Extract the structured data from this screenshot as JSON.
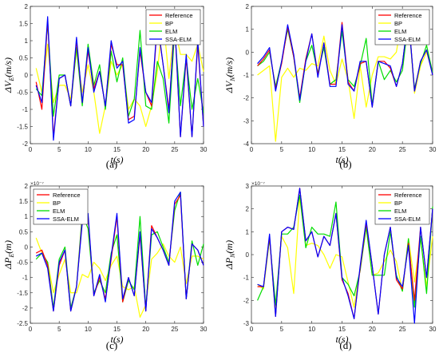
{
  "colors": {
    "reference": "#ff0000",
    "bp": "#ffff00",
    "elm": "#00dd00",
    "ssa_elm": "#0000ff",
    "axis": "#262626"
  },
  "chart_data": [
    {
      "type": "line",
      "panel_caption": "(a)",
      "xlabel": "t(s)",
      "ylabel": "ΔV_E(m/s)",
      "xlim": [
        0,
        30
      ],
      "ylim": [
        -2,
        2
      ],
      "xticks": [
        0,
        5,
        10,
        15,
        20,
        25,
        30
      ],
      "yticks": [
        -2,
        -1.5,
        -1,
        -0.5,
        0,
        0.5,
        1,
        1.5,
        2
      ],
      "ytick_labels": [
        "-2",
        "-1.5",
        "-1",
        "-0.5",
        "0",
        "0.5",
        "1",
        "1.5",
        "2"
      ],
      "y_exponent": "",
      "legend_position": "top-right",
      "grid": false,
      "x": [
        1,
        2,
        3,
        4,
        5,
        6,
        7,
        8,
        9,
        10,
        11,
        12,
        13,
        14,
        15,
        16,
        17,
        18,
        19,
        20,
        21,
        22,
        23,
        24,
        25,
        26,
        27,
        28,
        29,
        30
      ],
      "series": [
        {
          "name": "Reference",
          "key": "reference",
          "values": [
            -0.2,
            -1.0,
            1.6,
            -1.8,
            -0.1,
            0.0,
            -0.9,
            1.0,
            -0.8,
            0.7,
            -0.4,
            0.1,
            -0.9,
            0.9,
            0.3,
            0.3,
            -1.3,
            -1.2,
            0.7,
            -0.5,
            -0.9,
            1.5,
            0.3,
            -1.0,
            1.5,
            -1.8,
            0.5,
            -1.8,
            0.9,
            -1.5
          ]
        },
        {
          "name": "BP",
          "key": "bp",
          "values": [
            0.2,
            -0.5,
            0.9,
            -0.8,
            -0.3,
            -0.3,
            -0.7,
            0.7,
            -0.5,
            0.3,
            -0.5,
            -1.7,
            -0.9,
            0.4,
            0.0,
            0.3,
            -1.0,
            -0.7,
            -0.9,
            -1.5,
            -0.9,
            0.1,
            1.7,
            -0.1,
            1.4,
            0.6,
            0.6,
            0.4,
            0.9,
            0.1
          ]
        },
        {
          "name": "ELM",
          "key": "elm",
          "values": [
            -0.4,
            -0.6,
            1.5,
            -1.2,
            0.0,
            0.0,
            -0.9,
            0.8,
            -0.9,
            0.9,
            -0.3,
            0.3,
            -1.0,
            0.7,
            -0.2,
            0.5,
            -1.2,
            -0.7,
            1.3,
            -0.9,
            -1.0,
            0.4,
            -0.1,
            -1.4,
            1.3,
            -0.9,
            0.5,
            -1.0,
            -0.1,
            -1.1
          ]
        },
        {
          "name": "SSA-ELM",
          "key": "ssa_elm",
          "values": [
            -0.3,
            -0.8,
            1.7,
            -1.9,
            -0.1,
            0.0,
            -0.9,
            1.1,
            -0.8,
            0.8,
            -0.5,
            0.1,
            -0.9,
            1.0,
            0.2,
            0.4,
            -1.4,
            -1.3,
            0.8,
            -0.5,
            -0.8,
            1.6,
            0.3,
            -1.1,
            1.6,
            -1.8,
            0.6,
            -1.8,
            1.0,
            -1.5
          ]
        }
      ]
    },
    {
      "type": "line",
      "panel_caption": "(b)",
      "xlabel": "t(s)",
      "ylabel": "ΔV_N(m/s)",
      "xlim": [
        0,
        30
      ],
      "ylim": [
        -4,
        2
      ],
      "xticks": [
        0,
        5,
        10,
        15,
        20,
        25,
        30
      ],
      "yticks": [
        -4,
        -3,
        -2,
        -1,
        0,
        1,
        2
      ],
      "ytick_labels": [
        "-4",
        "-3",
        "-2",
        "-1",
        "0",
        "1",
        "2"
      ],
      "y_exponent": "",
      "legend_position": "top-right",
      "grid": false,
      "x": [
        1,
        2,
        3,
        4,
        5,
        6,
        7,
        8,
        9,
        10,
        11,
        12,
        13,
        14,
        15,
        16,
        17,
        18,
        19,
        20,
        21,
        22,
        23,
        24,
        25,
        26,
        27,
        28,
        29,
        30
      ],
      "series": [
        {
          "name": "Reference",
          "key": "reference",
          "values": [
            -0.6,
            -0.3,
            0.1,
            -1.6,
            -0.5,
            1.1,
            -0.2,
            -2.0,
            -0.3,
            0.8,
            -1.0,
            0.4,
            -1.4,
            -1.4,
            1.3,
            -1.3,
            -1.7,
            -0.5,
            -0.4,
            -2.4,
            -0.4,
            -0.4,
            -0.7,
            -1.5,
            -0.5,
            1.6,
            -1.7,
            -0.4,
            0.1,
            -1.0
          ]
        },
        {
          "name": "BP",
          "key": "bp",
          "values": [
            -1.0,
            -0.8,
            -0.6,
            -3.9,
            -1.1,
            -0.7,
            -1.1,
            -0.7,
            -0.8,
            -0.5,
            -0.6,
            0.7,
            -0.8,
            -1.4,
            -0.3,
            -1.2,
            -2.9,
            -0.6,
            -2.4,
            -1.0,
            -0.2,
            -0.2,
            -0.3,
            0.0,
            1.6,
            1.5,
            -1.8,
            -0.6,
            0.0,
            -0.9
          ]
        },
        {
          "name": "ELM",
          "key": "elm",
          "values": [
            -0.6,
            -0.4,
            0.0,
            -1.5,
            -0.4,
            1.0,
            -0.2,
            -2.2,
            -0.4,
            0.3,
            -0.9,
            0.2,
            -1.4,
            -1.2,
            0.9,
            -1.2,
            -1.5,
            -0.6,
            0.6,
            -2.3,
            -0.4,
            -1.2,
            -0.8,
            -1.3,
            -0.8,
            1.4,
            -1.6,
            -0.5,
            0.3,
            -0.9
          ]
        },
        {
          "name": "SSA-ELM",
          "key": "ssa_elm",
          "values": [
            -0.5,
            -0.2,
            0.2,
            -1.7,
            -0.4,
            1.2,
            -0.1,
            -2.1,
            -0.4,
            0.8,
            -1.1,
            0.4,
            -1.5,
            -1.5,
            1.2,
            -1.4,
            -1.7,
            -0.4,
            -0.4,
            -2.4,
            -0.4,
            -0.5,
            -0.6,
            -1.5,
            -0.5,
            1.6,
            -1.7,
            -0.4,
            0.1,
            -1.0
          ]
        }
      ]
    },
    {
      "type": "line",
      "panel_caption": "(c)",
      "xlabel": "t(s)",
      "ylabel": "ΔP_E(m)",
      "xlim": [
        0,
        30
      ],
      "ylim": [
        -2.5,
        2
      ],
      "xticks": [
        0,
        5,
        10,
        15,
        20,
        25,
        30
      ],
      "yticks": [
        -2.5,
        -2,
        -1.5,
        -1,
        -0.5,
        0,
        0.5,
        1,
        1.5,
        2
      ],
      "ytick_labels": [
        "-2.5",
        "-2",
        "-1.5",
        "-1",
        "-0.5",
        "0",
        "0.5",
        "1",
        "1.5",
        "2"
      ],
      "y_exponent": "×10⁻⁷",
      "legend_position": "top-left",
      "grid": false,
      "x": [
        1,
        2,
        3,
        4,
        5,
        6,
        7,
        8,
        9,
        10,
        11,
        12,
        13,
        14,
        15,
        16,
        17,
        18,
        19,
        20,
        21,
        22,
        23,
        24,
        25,
        26,
        27,
        28,
        29,
        30
      ],
      "series": [
        {
          "name": "Reference",
          "key": "reference",
          "values": [
            -0.2,
            -0.1,
            -0.6,
            -2.1,
            -0.6,
            -0.1,
            -2.1,
            -1.3,
            0.9,
            1.0,
            -1.6,
            -1.0,
            -1.7,
            -0.4,
            1.0,
            -1.8,
            -1.0,
            -1.6,
            0.4,
            -2.1,
            0.7,
            0.3,
            -0.1,
            -0.6,
            1.4,
            1.7,
            -1.7,
            0.1,
            -0.1,
            -0.6
          ]
        },
        {
          "name": "BP",
          "key": "bp",
          "values": [
            0.3,
            -0.2,
            -0.5,
            -1.5,
            -0.9,
            -0.4,
            -1.5,
            -1.5,
            -0.9,
            -1.0,
            -0.5,
            -0.7,
            -1.1,
            -0.6,
            -0.3,
            -1.3,
            -1.4,
            -1.3,
            -2.3,
            -1.9,
            -0.4,
            -0.2,
            0.1,
            -0.3,
            -0.5,
            0.0,
            -1.2,
            -0.3,
            -0.3,
            -0.4
          ]
        },
        {
          "name": "ELM",
          "key": "elm",
          "values": [
            -0.4,
            -0.2,
            -0.5,
            -2.0,
            -0.4,
            0.0,
            -2.0,
            -1.3,
            1.1,
            0.6,
            -1.5,
            -1.1,
            -1.5,
            -0.2,
            0.4,
            -1.8,
            -1.1,
            -1.4,
            1.0,
            -2.0,
            0.4,
            0.5,
            0.0,
            -0.5,
            1.2,
            1.8,
            -1.7,
            0.2,
            -0.6,
            0.1
          ]
        },
        {
          "name": "SSA-ELM",
          "key": "ssa_elm",
          "values": [
            -0.3,
            -0.2,
            -0.7,
            -2.1,
            -0.5,
            -0.1,
            -2.1,
            -1.3,
            0.8,
            1.1,
            -1.6,
            -0.9,
            -1.8,
            -0.3,
            1.1,
            -1.7,
            -1.0,
            -1.6,
            0.5,
            -2.1,
            0.6,
            0.3,
            -0.1,
            -0.6,
            1.5,
            1.8,
            -1.7,
            0.1,
            -0.1,
            -0.6
          ]
        }
      ]
    },
    {
      "type": "line",
      "panel_caption": "(d)",
      "xlabel": "t(s)",
      "ylabel": "ΔP_N(m)",
      "xlim": [
        0,
        30
      ],
      "ylim": [
        -3,
        3
      ],
      "xticks": [
        0,
        5,
        10,
        15,
        20,
        25,
        30
      ],
      "yticks": [
        -3,
        -2,
        -1,
        0,
        1,
        2,
        3
      ],
      "ytick_labels": [
        "-3",
        "-2",
        "-1",
        "0",
        "1",
        "2",
        "3"
      ],
      "y_exponent": "×10⁻⁷",
      "legend_position": "top-right",
      "grid": false,
      "x": [
        1,
        2,
        3,
        4,
        5,
        6,
        7,
        8,
        9,
        10,
        11,
        12,
        13,
        14,
        15,
        16,
        17,
        18,
        19,
        20,
        21,
        22,
        23,
        24,
        25,
        26,
        27,
        28,
        29,
        30
      ],
      "series": [
        {
          "name": "Reference",
          "key": "reference",
          "values": [
            -1.4,
            -1.4,
            0.8,
            -2.7,
            1.0,
            1.2,
            1.1,
            2.9,
            0.6,
            1.0,
            -0.1,
            0.8,
            0.4,
            1.8,
            -1.1,
            -1.7,
            -2.8,
            -0.6,
            1.4,
            -0.5,
            -2.6,
            0.0,
            1.2,
            -1.1,
            -1.5,
            0.5,
            -2.0,
            1.2,
            -1.0,
            2.0
          ]
        },
        {
          "name": "BP",
          "key": "bp",
          "values": [
            -1.3,
            -1.5,
            0.7,
            -2.3,
            0.8,
            0.3,
            -1.7,
            2.5,
            0.4,
            0.5,
            0.4,
            0.0,
            -0.6,
            0.0,
            -0.1,
            -1.2,
            -2.3,
            -0.6,
            1.2,
            -0.9,
            -0.8,
            -0.3,
            0.2,
            -0.3,
            -1.6,
            0.7,
            -1.2,
            0.7,
            -1.4,
            0.8
          ]
        },
        {
          "name": "ELM",
          "key": "elm",
          "values": [
            -2.0,
            -1.4,
            0.7,
            -2.2,
            0.9,
            0.9,
            1.2,
            2.6,
            0.3,
            1.2,
            0.9,
            0.9,
            0.8,
            2.3,
            -1.0,
            -1.3,
            -1.8,
            -0.7,
            1.2,
            -0.9,
            -0.9,
            -0.9,
            1.0,
            -0.9,
            -1.6,
            0.7,
            -2.3,
            0.8,
            -1.7,
            2.1
          ]
        },
        {
          "name": "SSA-ELM",
          "key": "ssa_elm",
          "values": [
            -1.3,
            -1.4,
            0.9,
            -2.7,
            1.0,
            1.2,
            1.1,
            2.9,
            0.6,
            1.0,
            -0.1,
            0.8,
            0.4,
            1.8,
            -1.0,
            -1.8,
            -2.8,
            -0.5,
            1.5,
            -0.5,
            -2.6,
            0.0,
            1.2,
            -1.0,
            -1.4,
            0.4,
            -3.0,
            1.2,
            -1.0,
            2.0
          ]
        }
      ]
    }
  ]
}
